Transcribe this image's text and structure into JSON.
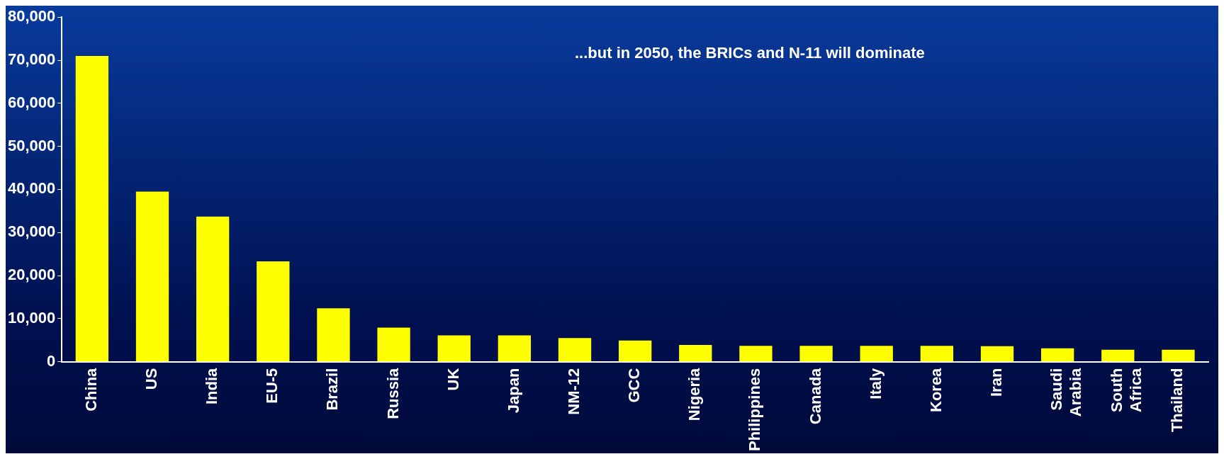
{
  "chart_data": {
    "type": "bar",
    "title": "...but in 2050, the BRICs and N-11 will dominate",
    "categories": [
      "China",
      "US",
      "India",
      "EU-5",
      "Brazil",
      "Russia",
      "UK",
      "Japan",
      "NM-12",
      "GCC",
      "Nigeria",
      "Philippines",
      "Canada",
      "Italy",
      "Korea",
      "Iran",
      "Saudi Arabia",
      "South Africa",
      "Thailand"
    ],
    "values": [
      71000,
      39500,
      33700,
      23300,
      12400,
      7900,
      6100,
      6100,
      5500,
      4900,
      3900,
      3700,
      3700,
      3700,
      3700,
      3600,
      3100,
      2800,
      2800
    ],
    "color": "#ffff00",
    "ylim": [
      0,
      80000
    ],
    "yticks": [
      {
        "value": 0,
        "label": "0"
      },
      {
        "value": 10000,
        "label": "10,000"
      },
      {
        "value": 20000,
        "label": "20,000"
      },
      {
        "value": 30000,
        "label": "30,000"
      },
      {
        "value": 40000,
        "label": "40,000"
      },
      {
        "value": 50000,
        "label": "50,000"
      },
      {
        "value": 60000,
        "label": "60,000"
      },
      {
        "value": 70000,
        "label": "70,000"
      },
      {
        "value": 80000,
        "label": "80,000"
      }
    ],
    "grid": false,
    "legend": false
  }
}
